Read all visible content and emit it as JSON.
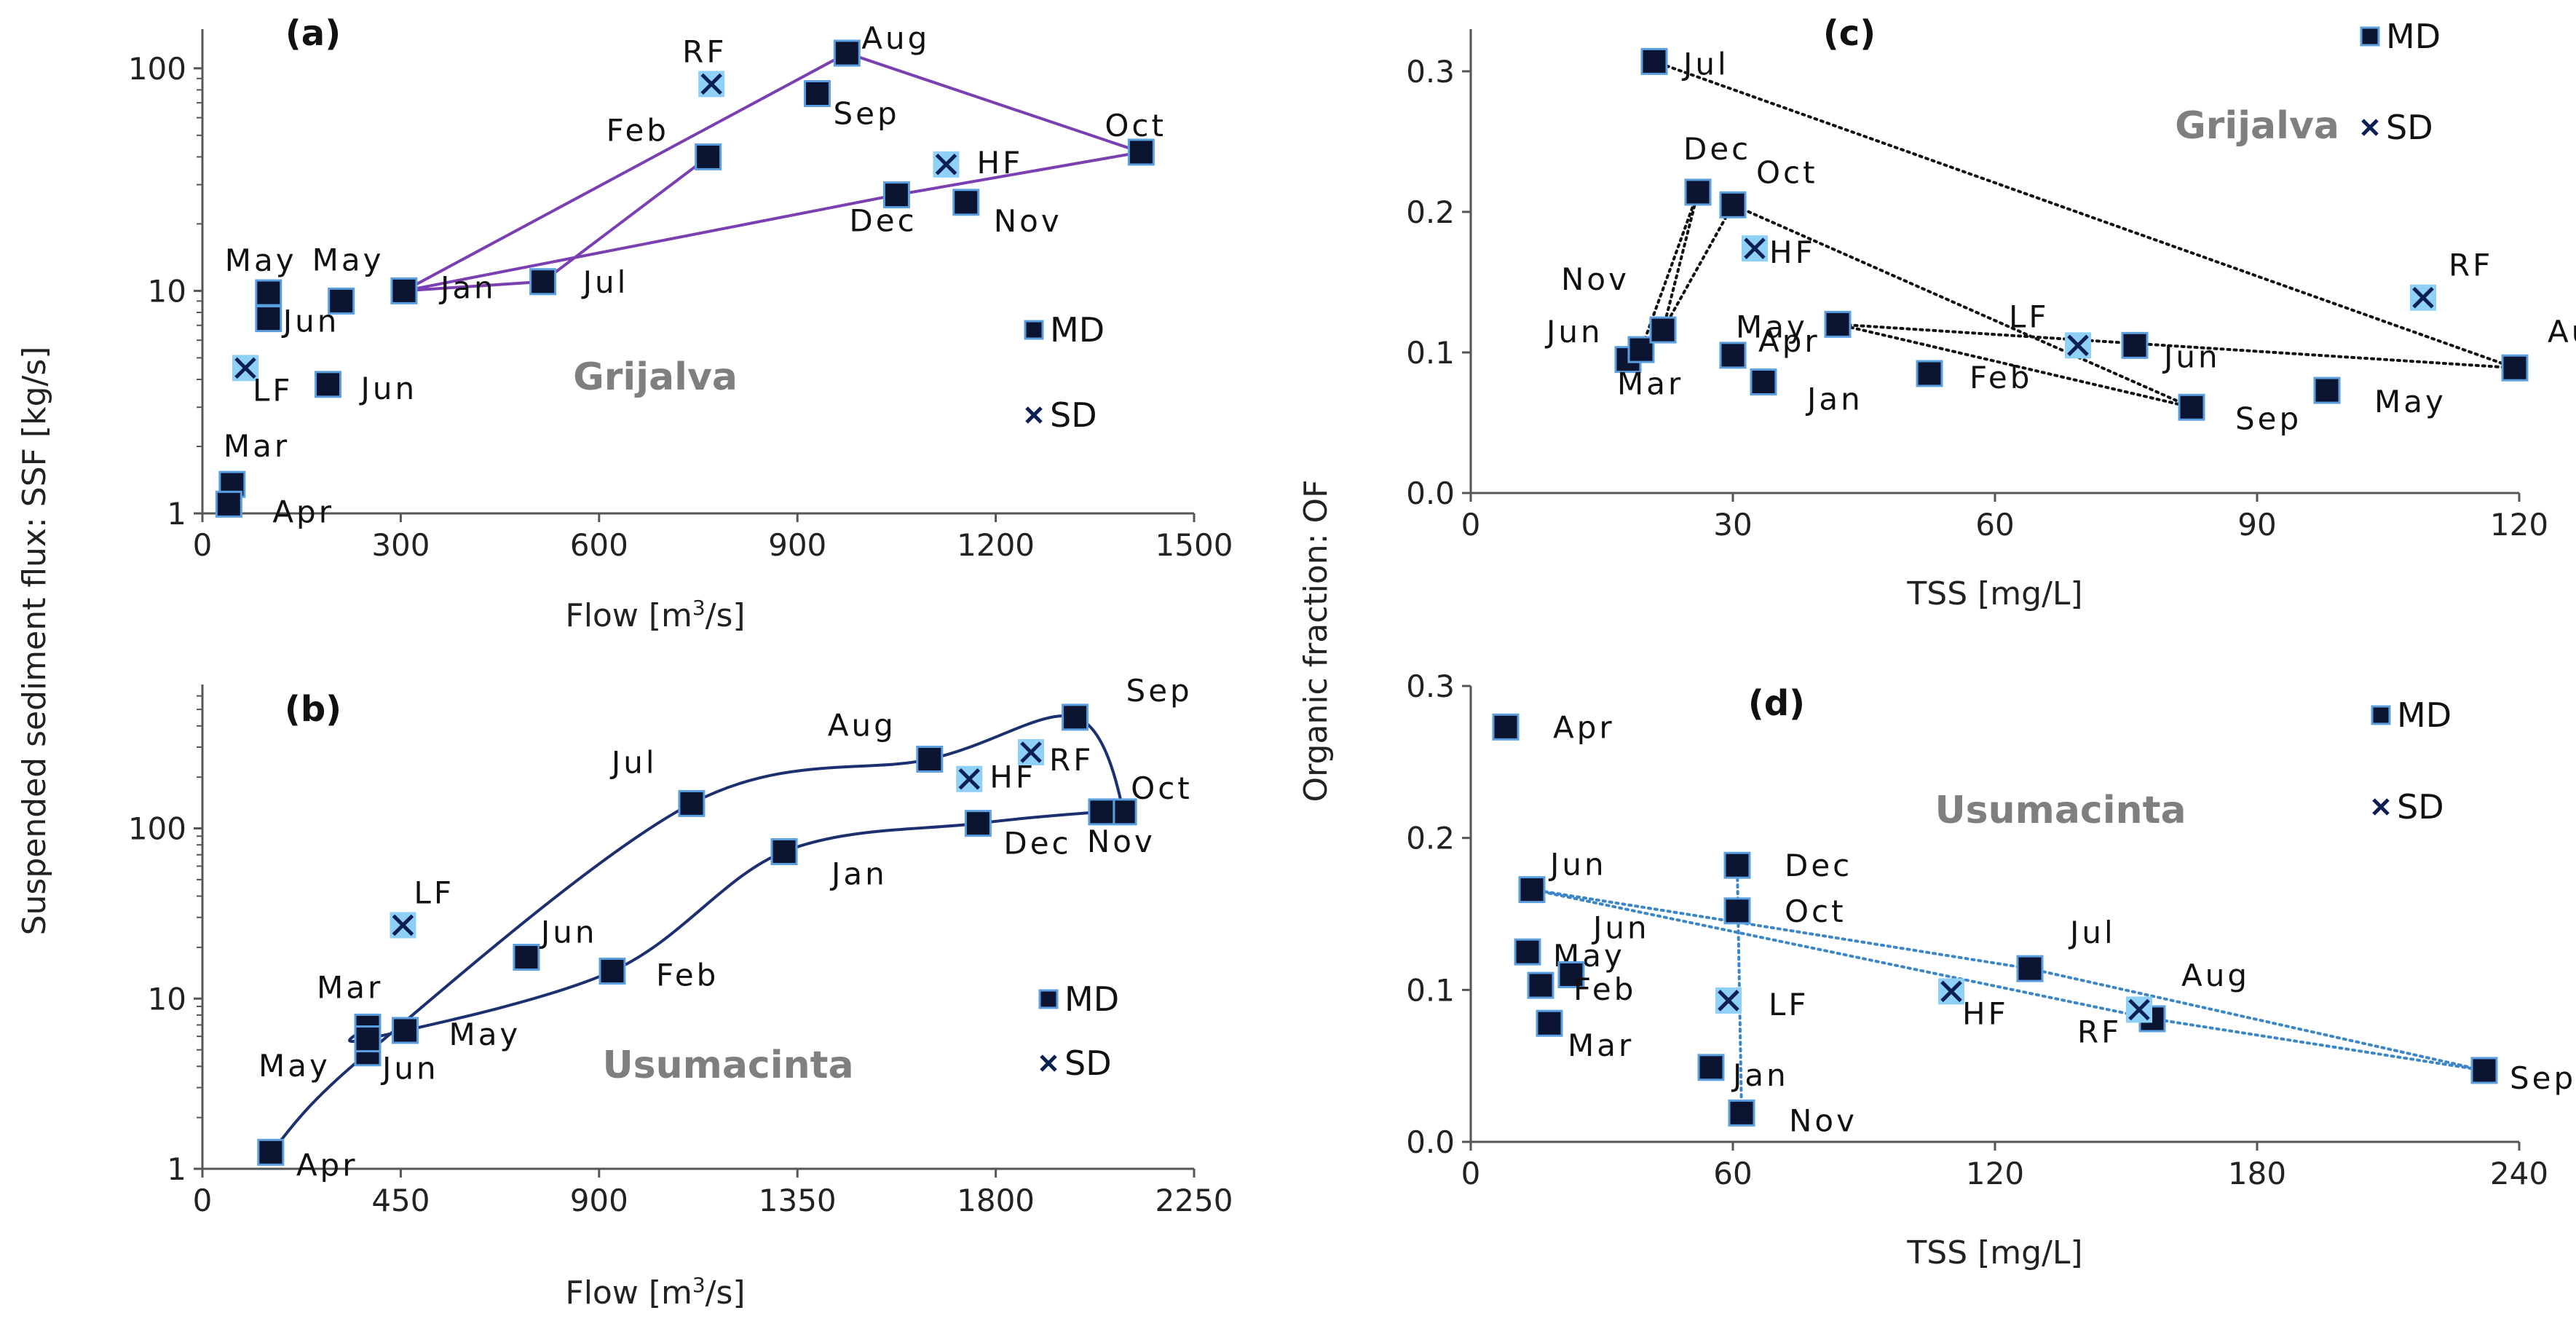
{
  "shared": {
    "ylabel_left": "Suspended sediment flux: SSF [kg/s]",
    "ylabel_right": "Organic fraction: OF"
  },
  "chart_data": [
    {
      "id": "a",
      "type": "scatter",
      "title": "(a)",
      "river": "Grijalva",
      "xlabel_pre": "Flow [m",
      "xlabel_sup": "3",
      "xlabel_post": "/s]",
      "xlim": [
        0,
        1500
      ],
      "xticks": [
        0,
        300,
        600,
        900,
        1200,
        1500
      ],
      "yscale": "log",
      "ylim": [
        1,
        150
      ],
      "yticks": [
        1,
        10,
        100
      ],
      "legend": [
        {
          "label": "MD",
          "marker": "square"
        },
        {
          "label": "SD",
          "marker": "x"
        }
      ],
      "color": "#7a3fb0",
      "series": [
        {
          "name": "MD",
          "marker": "square",
          "points": [
            {
              "label": "Jan",
              "x": 305,
              "y": 10
            },
            {
              "label": "Feb",
              "x": 765,
              "y": 40
            },
            {
              "label": "Mar",
              "x": 45,
              "y": 1.35
            },
            {
              "label": "Apr",
              "x": 40,
              "y": 1.1
            },
            {
              "label": "May",
              "x": 100,
              "y": 9.8
            },
            {
              "label": "Jun",
              "x": 100,
              "y": 7.5
            },
            {
              "label": "May",
              "x": 210,
              "y": 9
            },
            {
              "label": "Jun",
              "x": 190,
              "y": 3.8
            },
            {
              "label": "Jul",
              "x": 515,
              "y": 11
            },
            {
              "label": "Aug",
              "x": 975,
              "y": 117
            },
            {
              "label": "Sep",
              "x": 930,
              "y": 77
            },
            {
              "label": "Oct",
              "x": 1420,
              "y": 42
            },
            {
              "label": "Nov",
              "x": 1155,
              "y": 25
            },
            {
              "label": "Dec",
              "x": 1050,
              "y": 27
            }
          ]
        },
        {
          "name": "SD",
          "marker": "x",
          "points": [
            {
              "label": "RF",
              "x": 770,
              "y": 85
            },
            {
              "label": "HF",
              "x": 1125,
              "y": 37
            },
            {
              "label": "LF",
              "x": 65,
              "y": 4.5
            }
          ]
        }
      ],
      "paths": [
        {
          "style": "line",
          "seq": [
            "Jan",
            "Aug",
            "Oct",
            "Dec",
            "Jan",
            "Jul",
            "Feb"
          ]
        }
      ]
    },
    {
      "id": "b",
      "type": "scatter",
      "title": "(b)",
      "river": "Usumacinta",
      "xlabel_pre": "Flow [m",
      "xlabel_sup": "3",
      "xlabel_post": "/s]",
      "xlim": [
        0,
        2250
      ],
      "xticks": [
        0,
        450,
        900,
        1350,
        1800,
        2250
      ],
      "yscale": "log",
      "ylim": [
        1,
        700
      ],
      "yticks": [
        1,
        10,
        100
      ],
      "legend": [
        {
          "label": "MD",
          "marker": "square"
        },
        {
          "label": "SD",
          "marker": "x"
        }
      ],
      "color": "#1c2f6e",
      "series": [
        {
          "name": "MD",
          "marker": "square",
          "points": [
            {
              "label": "Jan",
              "x": 1320,
              "y": 73
            },
            {
              "label": "Feb",
              "x": 930,
              "y": 14.5
            },
            {
              "label": "Mar",
              "x": 375,
              "y": 6.8
            },
            {
              "label": "Apr",
              "x": 155,
              "y": 1.25
            },
            {
              "label": "May",
              "x": 375,
              "y": 4.8
            },
            {
              "label": "Jun",
              "x": 375,
              "y": 5.8
            },
            {
              "label": "May",
              "x": 460,
              "y": 6.5
            },
            {
              "label": "Jun",
              "x": 735,
              "y": 17.5
            },
            {
              "label": "Jul",
              "x": 1110,
              "y": 140
            },
            {
              "label": "Aug",
              "x": 1650,
              "y": 255
            },
            {
              "label": "Sep",
              "x": 1980,
              "y": 450
            },
            {
              "label": "Oct",
              "x": 2090,
              "y": 125
            },
            {
              "label": "Nov",
              "x": 2040,
              "y": 125
            },
            {
              "label": "Dec",
              "x": 1760,
              "y": 107
            }
          ]
        },
        {
          "name": "SD",
          "marker": "x",
          "points": [
            {
              "label": "RF",
              "x": 1880,
              "y": 280
            },
            {
              "label": "HF",
              "x": 1740,
              "y": 195
            },
            {
              "label": "LF",
              "x": 455,
              "y": 27
            }
          ]
        }
      ],
      "paths": [
        {
          "style": "curve",
          "seq": [
            "Apr",
            "May",
            "Jul",
            "Aug",
            "Sep",
            "Oct",
            "Nov",
            "Dec",
            "Jan",
            "Feb",
            "Jun",
            "Mar"
          ]
        }
      ]
    },
    {
      "id": "c",
      "type": "scatter",
      "title": "(c)",
      "river": "Grijalva",
      "xlabel": "TSS [mg/L]",
      "xlim": [
        0,
        120
      ],
      "xticks": [
        0,
        30,
        60,
        90,
        120
      ],
      "yscale": "linear",
      "ylim": [
        0,
        0.33
      ],
      "yticks": [
        0.0,
        0.1,
        0.2,
        0.3
      ],
      "legend": [
        {
          "label": "MD",
          "marker": "square"
        },
        {
          "label": "SD",
          "marker": "x"
        }
      ],
      "color": "#111111",
      "series": [
        {
          "name": "MD",
          "marker": "square",
          "points": [
            {
              "label": "Jan",
              "x": 33.5,
              "y": 0.079
            },
            {
              "label": "Feb",
              "x": 52.5,
              "y": 0.085
            },
            {
              "label": "Mar",
              "x": 18,
              "y": 0.095
            },
            {
              "label": "Apr",
              "x": 30,
              "y": 0.098
            },
            {
              "label": "May",
              "x": 42,
              "y": 0.12
            },
            {
              "label": "Jun",
              "x": 19.5,
              "y": 0.102
            },
            {
              "label": "Nov",
              "x": 22,
              "y": 0.116
            },
            {
              "label": "Jul",
              "x": 21,
              "y": 0.307
            },
            {
              "label": "Aug",
              "x": 119.5,
              "y": 0.089
            },
            {
              "label": "Sep",
              "x": 82.5,
              "y": 0.061
            },
            {
              "label": "Oct",
              "x": 30,
              "y": 0.205
            },
            {
              "label": "Dec",
              "x": 26,
              "y": 0.214
            },
            {
              "label": "Jun",
              "x": 76,
              "y": 0.105
            },
            {
              "label": "May",
              "x": 98,
              "y": 0.073
            }
          ]
        },
        {
          "name": "SD",
          "marker": "x",
          "points": [
            {
              "label": "RF",
              "x": 109,
              "y": 0.139
            },
            {
              "label": "HF",
              "x": 32.5,
              "y": 0.174
            },
            {
              "label": "LF",
              "x": 69.5,
              "y": 0.105
            }
          ]
        }
      ],
      "paths": [
        {
          "style": "dotted",
          "seq": [
            "Jul",
            "Aug",
            "May",
            "Sep",
            "Oct",
            "Nov",
            "Dec",
            "Jun"
          ]
        }
      ]
    },
    {
      "id": "d",
      "type": "scatter",
      "title": "(d)",
      "river": "Usumacinta",
      "xlabel": "TSS [mg/L]",
      "xlim": [
        0,
        240
      ],
      "xticks": [
        0,
        60,
        120,
        180,
        240
      ],
      "yscale": "linear",
      "ylim": [
        0,
        0.3
      ],
      "yticks": [
        0.0,
        0.1,
        0.2,
        0.3
      ],
      "legend": [
        {
          "label": "MD",
          "marker": "square"
        },
        {
          "label": "SD",
          "marker": "x"
        }
      ],
      "color": "#3a86c8",
      "series": [
        {
          "name": "MD",
          "marker": "square",
          "points": [
            {
              "label": "Apr",
              "x": 8,
              "y": 0.273
            },
            {
              "label": "Jun",
              "x": 14,
              "y": 0.166
            },
            {
              "label": "May",
              "x": 13,
              "y": 0.125
            },
            {
              "label": "Jun",
              "x": 23,
              "y": 0.11
            },
            {
              "label": "Feb",
              "x": 16,
              "y": 0.103
            },
            {
              "label": "Mar",
              "x": 18,
              "y": 0.078
            },
            {
              "label": "Dec",
              "x": 61,
              "y": 0.182
            },
            {
              "label": "Oct",
              "x": 61,
              "y": 0.152
            },
            {
              "label": "Jan",
              "x": 55,
              "y": 0.049
            },
            {
              "label": "Nov",
              "x": 62,
              "y": 0.019
            },
            {
              "label": "Jul",
              "x": 128,
              "y": 0.114
            },
            {
              "label": "Aug",
              "x": 156,
              "y": 0.081
            },
            {
              "label": "Sep",
              "x": 232,
              "y": 0.047
            }
          ]
        },
        {
          "name": "SD",
          "marker": "x",
          "points": [
            {
              "label": "LF",
              "x": 59,
              "y": 0.093
            },
            {
              "label": "HF",
              "x": 110,
              "y": 0.099
            },
            {
              "label": "RF",
              "x": 153,
              "y": 0.087
            }
          ]
        }
      ],
      "paths": [
        {
          "style": "dotted",
          "seq": [
            "Jun",
            "Jul",
            "Sep",
            "Aug",
            "Jun"
          ]
        },
        {
          "style": "dotted",
          "seq": [
            "Dec",
            "Nov"
          ]
        }
      ]
    }
  ]
}
